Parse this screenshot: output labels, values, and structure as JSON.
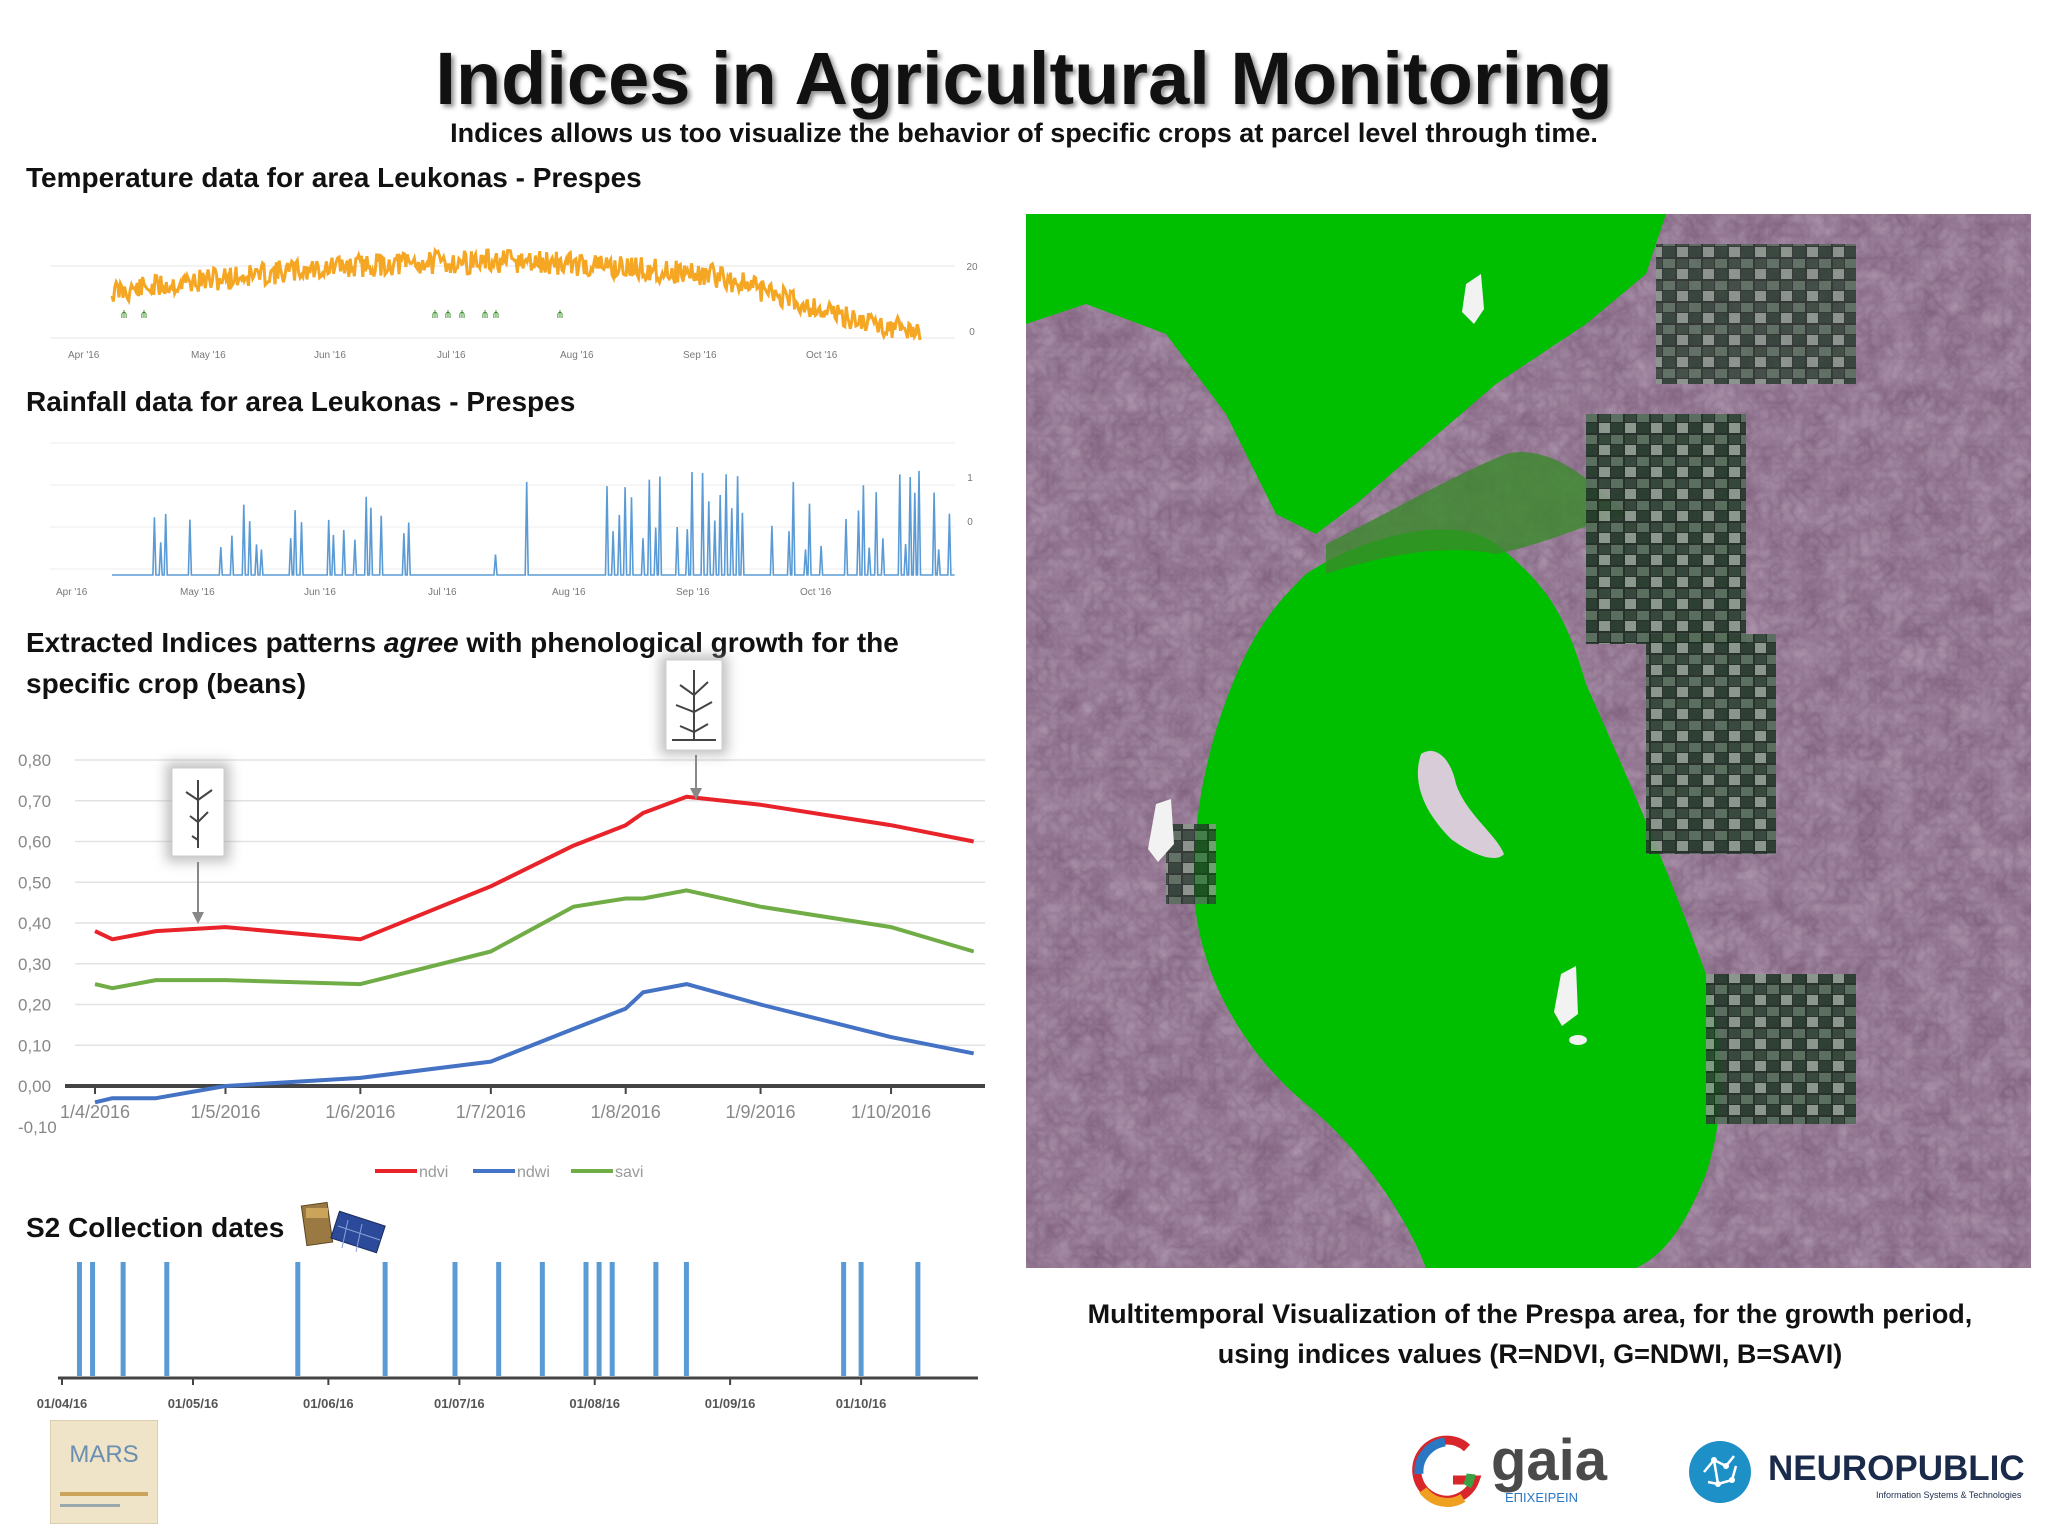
{
  "header": {
    "title": "Indices in Agricultural Monitoring",
    "subtitle": "Indices allows us too visualize the behavior of specific crops at parcel level through time."
  },
  "sections": {
    "temperature": "Temperature data for area Leukonas - Prespes",
    "rainfall": "Rainfall data for area Leukonas - Prespes",
    "indices_pre": "Extracted Indices patterns ",
    "indices_em": "agree",
    "indices_post": " with phenological growth for the specific crop (beans)",
    "s2": "S2 Collection dates"
  },
  "caption": {
    "line1": "Multitemporal Visualization of the Prespa area, for the growth period,",
    "line2": "using indices values (R=NDVI, G=NDWI, B=SAVI)"
  },
  "logos": {
    "gaia": "gaia",
    "gaia_sub": "ΕΠΙΧΕΙΡΕΙΝ",
    "neuropublic": "NEUROPUBLIC",
    "neuropublic_sub": "Information Systems & Technologies",
    "mars": "MARS"
  },
  "colors": {
    "temperature": "#f5a623",
    "rainfall": "#5b9bd5",
    "ndvi": "#e8232a",
    "ndwi": "#4472c4",
    "savi": "#70ad47",
    "s2_bars": "#5b9bd5",
    "map_water": "#00c000",
    "map_land": "#7a5a78"
  },
  "temperature_chart": {
    "x_ticks": [
      "Apr '16",
      "May '16",
      "Jun '16",
      "Jul '16",
      "Aug '16",
      "Sep '16",
      "Oct '16"
    ],
    "y_ticks": [
      "20",
      "0"
    ]
  },
  "rainfall_chart": {
    "x_ticks": [
      "Apr '16",
      "May '16",
      "Jun '16",
      "Jul '16",
      "Aug '16",
      "Sep '16",
      "Oct '16"
    ],
    "y_ticks": [
      "1",
      "0"
    ]
  },
  "chart_data": {
    "type": "line",
    "x": [
      "1/4/2016",
      "5/4/2016",
      "15/4/2016",
      "1/5/2016",
      "1/6/2016",
      "1/7/2016",
      "20/7/2016",
      "1/8/2016",
      "5/8/2016",
      "15/8/2016",
      "1/9/2016",
      "1/10/2016",
      "20/10/2016"
    ],
    "x_ticks": [
      "1/4/2016",
      "1/5/2016",
      "1/6/2016",
      "1/7/2016",
      "1/8/2016",
      "1/9/2016",
      "1/10/2016"
    ],
    "y_ticks": [
      "0,80",
      "0,70",
      "0,60",
      "0,50",
      "0,40",
      "0,30",
      "0,20",
      "0,10",
      "0,00",
      "-0,10"
    ],
    "ylim": [
      -0.1,
      0.8
    ],
    "series": [
      {
        "name": "ndvi",
        "values": [
          0.38,
          0.36,
          0.38,
          0.39,
          0.36,
          0.49,
          0.59,
          0.64,
          0.67,
          0.71,
          0.69,
          0.64,
          0.6
        ]
      },
      {
        "name": "ndwi",
        "values": [
          -0.04,
          -0.03,
          -0.03,
          0.0,
          0.02,
          0.06,
          0.14,
          0.19,
          0.23,
          0.25,
          0.2,
          0.12,
          0.08
        ]
      },
      {
        "name": "savi",
        "values": [
          0.25,
          0.24,
          0.26,
          0.26,
          0.25,
          0.33,
          0.44,
          0.46,
          0.46,
          0.48,
          0.44,
          0.39,
          0.33
        ]
      }
    ],
    "legend": "bottom",
    "grid": true
  },
  "s2_dates": {
    "x_ticks": [
      "01/04/16",
      "01/05/16",
      "01/06/16",
      "01/07/16",
      "01/08/16",
      "01/09/16",
      "01/10/16"
    ],
    "dates": [
      "2016-04-05",
      "2016-04-08",
      "2016-04-15",
      "2016-04-25",
      "2016-05-25",
      "2016-06-14",
      "2016-06-30",
      "2016-07-10",
      "2016-07-20",
      "2016-07-30",
      "2016-08-02",
      "2016-08-05",
      "2016-08-15",
      "2016-08-22",
      "2016-09-27",
      "2016-10-01",
      "2016-10-14"
    ]
  }
}
